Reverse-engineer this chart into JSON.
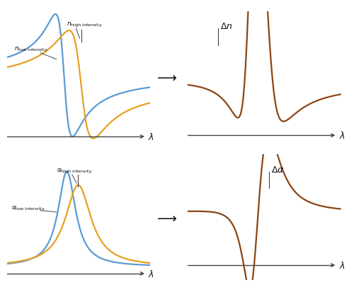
{
  "bg_color": "#ffffff",
  "blue_color": "#5b9bd5",
  "orange_color": "#e8a020",
  "brown_color": "#8b4513",
  "arrow_color": "#111111",
  "text_color": "#111111",
  "axis_color": "#444444"
}
